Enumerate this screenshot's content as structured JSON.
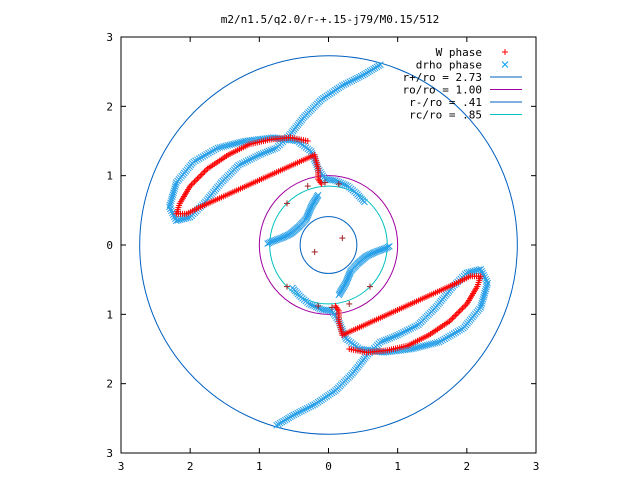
{
  "chart_data": {
    "type": "scatter",
    "title": "m2/n1.5/q2.0/r-+.15-j79/M0.15/512",
    "xlabel": "",
    "ylabel": "",
    "xlim": [
      -3,
      3
    ],
    "ylim": [
      -3,
      3
    ],
    "x_tick_labels": [
      "3",
      "2",
      "1",
      "0",
      "1",
      "2",
      "3"
    ],
    "y_tick_labels": [
      "3",
      "2",
      "1",
      "0",
      "1",
      "2",
      "3"
    ],
    "tick_values": [
      -3,
      -2,
      -1,
      0,
      1,
      2,
      3
    ],
    "grid": false,
    "legend_position": "top-right",
    "legend": [
      {
        "label": "W phase",
        "marker": "plus",
        "color": "#ff0000"
      },
      {
        "label": "drho phase",
        "marker": "cross",
        "color": "#00a0ff"
      },
      {
        "label": "r+/ro = 2.73",
        "marker": "line",
        "color": "#0060c0"
      },
      {
        "label": "ro/ro = 1.00",
        "marker": "line",
        "color": "#a000a0"
      },
      {
        "label": "r-/ro = .41",
        "marker": "line",
        "color": "#0060c0"
      },
      {
        "label": "rc/ro = .85",
        "marker": "line",
        "color": "#00c0c0"
      }
    ],
    "circles": [
      {
        "name": "r+/ro",
        "radius": 2.73,
        "color": "#0060c0"
      },
      {
        "name": "ro/ro",
        "radius": 1.0,
        "color": "#a000a0"
      },
      {
        "name": "r-/ro",
        "radius": 0.41,
        "color": "#0060c0"
      },
      {
        "name": "rc/ro",
        "radius": 0.85,
        "color": "#00c0c0"
      }
    ],
    "drho_arm": [
      [
        0.75,
        2.6
      ],
      [
        0.5,
        2.45
      ],
      [
        0.2,
        2.3
      ],
      [
        -0.1,
        2.1
      ],
      [
        -0.35,
        1.85
      ],
      [
        -0.55,
        1.6
      ],
      [
        -0.75,
        1.4
      ],
      [
        -1.0,
        1.3
      ],
      [
        -1.3,
        1.15
      ],
      [
        -1.55,
        0.9
      ],
      [
        -1.8,
        0.6
      ],
      [
        -2.0,
        0.4
      ],
      [
        -2.2,
        0.35
      ],
      [
        -2.3,
        0.55
      ],
      [
        -2.2,
        0.9
      ],
      [
        -1.95,
        1.2
      ],
      [
        -1.6,
        1.4
      ],
      [
        -1.2,
        1.5
      ],
      [
        -0.8,
        1.55
      ],
      [
        -0.45,
        1.5
      ],
      [
        -0.25,
        1.35
      ],
      [
        -0.15,
        1.1
      ],
      [
        -0.05,
        0.95
      ],
      [
        0.1,
        0.93
      ],
      [
        0.28,
        0.85
      ],
      [
        0.4,
        0.75
      ],
      [
        0.52,
        0.62
      ]
    ],
    "w_arm": [
      [
        -0.3,
        1.5
      ],
      [
        -0.55,
        1.55
      ],
      [
        -0.85,
        1.52
      ],
      [
        -1.15,
        1.45
      ],
      [
        -1.45,
        1.3
      ],
      [
        -1.75,
        1.1
      ],
      [
        -2.0,
        0.85
      ],
      [
        -2.15,
        0.6
      ],
      [
        -2.2,
        0.45
      ],
      [
        -2.05,
        0.45
      ],
      [
        -1.85,
        0.55
      ],
      [
        -0.2,
        1.3
      ],
      [
        -0.15,
        1.1
      ],
      [
        -0.15,
        0.95
      ],
      [
        -0.1,
        0.88
      ]
    ],
    "drho_inner_bar": [
      [
        -0.15,
        0.72
      ],
      [
        -0.25,
        0.55
      ],
      [
        -0.32,
        0.38
      ],
      [
        -0.42,
        0.27
      ],
      [
        -0.55,
        0.16
      ],
      [
        -0.68,
        0.1
      ],
      [
        -0.82,
        0.05
      ],
      [
        -0.88,
        0.02
      ]
    ],
    "w_scatter": [
      [
        -0.6,
        0.6
      ],
      [
        -0.3,
        0.85
      ],
      [
        -0.05,
        0.9
      ],
      [
        0.15,
        0.88
      ],
      [
        -0.6,
        -0.6
      ],
      [
        0.6,
        -0.6
      ],
      [
        0.3,
        -0.85
      ],
      [
        0.05,
        -0.9
      ],
      [
        -0.15,
        -0.88
      ],
      [
        0.2,
        0.1
      ],
      [
        -0.2,
        -0.1
      ]
    ]
  }
}
